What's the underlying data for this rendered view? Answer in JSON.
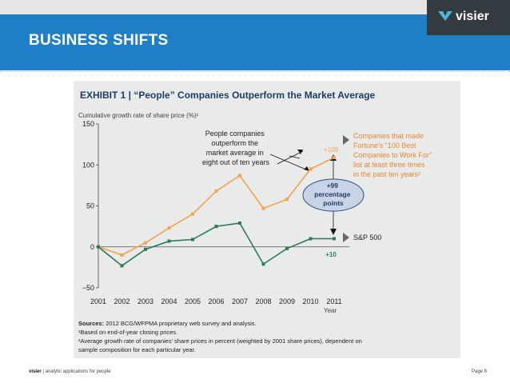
{
  "slide": {
    "title": "BUSINESS SHIFTS",
    "logo_text": "visier",
    "footer_brand": "visier",
    "footer_sep": "|",
    "footer_tagline": "analytic applications for people",
    "page_label": "Page 6",
    "accent_color": "#1e7fc6"
  },
  "chart_data": {
    "type": "line",
    "title": "EXHIBIT 1 | “People” Companies Outperform the Market Average",
    "ylabel": "Cumulative growth rate of share price (%)¹",
    "xlabel": "Year",
    "x": [
      "2001",
      "2002",
      "2003",
      "2004",
      "2005",
      "2006",
      "2007",
      "2008",
      "2009",
      "2010",
      "2011"
    ],
    "ylim": [
      -50,
      150
    ],
    "yticks": [
      "150",
      "100",
      "50",
      "0",
      "−50"
    ],
    "series": [
      {
        "name": "Companies that made Fortune’s “100 Best Companies to Work For” list at least three times in the past ten years²",
        "color": "#f6a24a",
        "values": [
          0,
          -10,
          5,
          23,
          40,
          68,
          87,
          47,
          58,
          95,
          109
        ]
      },
      {
        "name": "S&P 500",
        "color": "#2e7a55",
        "values": [
          0,
          -23,
          -3,
          7,
          9,
          25,
          29,
          -21,
          -2,
          10,
          10
        ]
      }
    ],
    "annotations": {
      "callout": [
        "People companies",
        "outperform the",
        "market average in",
        "eight out of ten years"
      ],
      "best_lines": [
        "Companies that made",
        "Fortune’s “100 Best",
        "Companies to Work For”",
        "list at least three times",
        "in the past ten years²"
      ],
      "sp_label": "S&P 500",
      "best_end": "+109",
      "sp_end": "+10",
      "gap": [
        "+99",
        "percentage",
        "points"
      ]
    },
    "notes": {
      "sources_label": "Sources:",
      "sources": "2012 BCG/WFPMA proprietary web survey and analysis.",
      "note1": "¹Based on end-of-year closing prices.",
      "note2a": "²Average growth rate of companies’ share prices in percent (weighted by 2001 share prices), dependent on",
      "note2b": "sample composition for each particular year."
    }
  }
}
